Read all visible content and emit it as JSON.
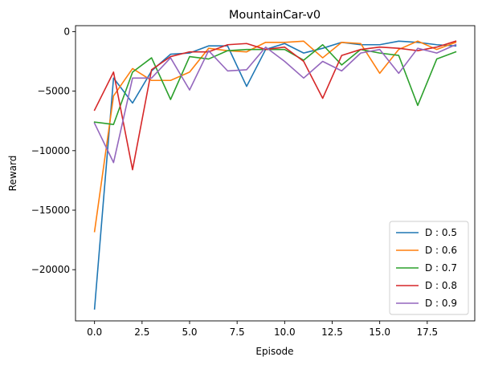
{
  "chart_data": {
    "type": "line",
    "title": "MountainCar-v0",
    "xlabel": "Episode",
    "ylabel": "Reward",
    "xlim": [
      -1.0,
      20.0
    ],
    "ylim": [
      -24300,
      500
    ],
    "xticks": [
      0.0,
      2.5,
      5.0,
      7.5,
      10.0,
      12.5,
      15.0,
      17.5
    ],
    "xtick_labels": [
      "0.0",
      "2.5",
      "5.0",
      "7.5",
      "10.0",
      "12.5",
      "15.0",
      "17.5"
    ],
    "yticks": [
      0,
      -5000,
      -10000,
      -15000,
      -20000
    ],
    "ytick_labels": [
      "0",
      "−5000",
      "−10000",
      "−15000",
      "−20000"
    ],
    "grid": false,
    "legend_position": "lower-right",
    "x": [
      0,
      1,
      2,
      3,
      4,
      5,
      6,
      7,
      8,
      9,
      10,
      11,
      12,
      13,
      14,
      15,
      16,
      17,
      18,
      19
    ],
    "series": [
      {
        "name": "D : 0.5",
        "color": "#1f77b4",
        "values": [
          -23300,
          -3900,
          -6000,
          -3300,
          -1900,
          -1800,
          -1200,
          -1200,
          -4600,
          -1500,
          -1000,
          -1800,
          -1400,
          -900,
          -1100,
          -1100,
          -800,
          -900,
          -1100,
          -1200
        ]
      },
      {
        "name": "D : 0.6",
        "color": "#ff7f0e",
        "values": [
          -16800,
          -5400,
          -3100,
          -4100,
          -4100,
          -3400,
          -1400,
          -1600,
          -1700,
          -900,
          -900,
          -800,
          -2200,
          -900,
          -1000,
          -3500,
          -1500,
          -800,
          -1500,
          -900
        ]
      },
      {
        "name": "D : 0.7",
        "color": "#2ca02c",
        "values": [
          -7600,
          -7800,
          -3400,
          -2200,
          -5700,
          -2100,
          -2300,
          -1600,
          -1500,
          -1500,
          -1500,
          -2400,
          -1100,
          -2800,
          -1500,
          -1800,
          -2000,
          -6200,
          -2300,
          -1700
        ]
      },
      {
        "name": "D : 0.8",
        "color": "#d62728",
        "values": [
          -6600,
          -3400,
          -11600,
          -3200,
          -2100,
          -1700,
          -1700,
          -1100,
          -1000,
          -1500,
          -1300,
          -2500,
          -5600,
          -2000,
          -1500,
          -1300,
          -1400,
          -1600,
          -1300,
          -800
        ]
      },
      {
        "name": "D : 0.9",
        "color": "#9467bd",
        "values": [
          -7700,
          -11000,
          -3900,
          -3900,
          -2200,
          -4900,
          -1600,
          -3300,
          -3200,
          -1300,
          -2500,
          -3900,
          -2500,
          -3300,
          -1800,
          -1500,
          -3500,
          -1400,
          -1800,
          -1100
        ]
      }
    ]
  }
}
